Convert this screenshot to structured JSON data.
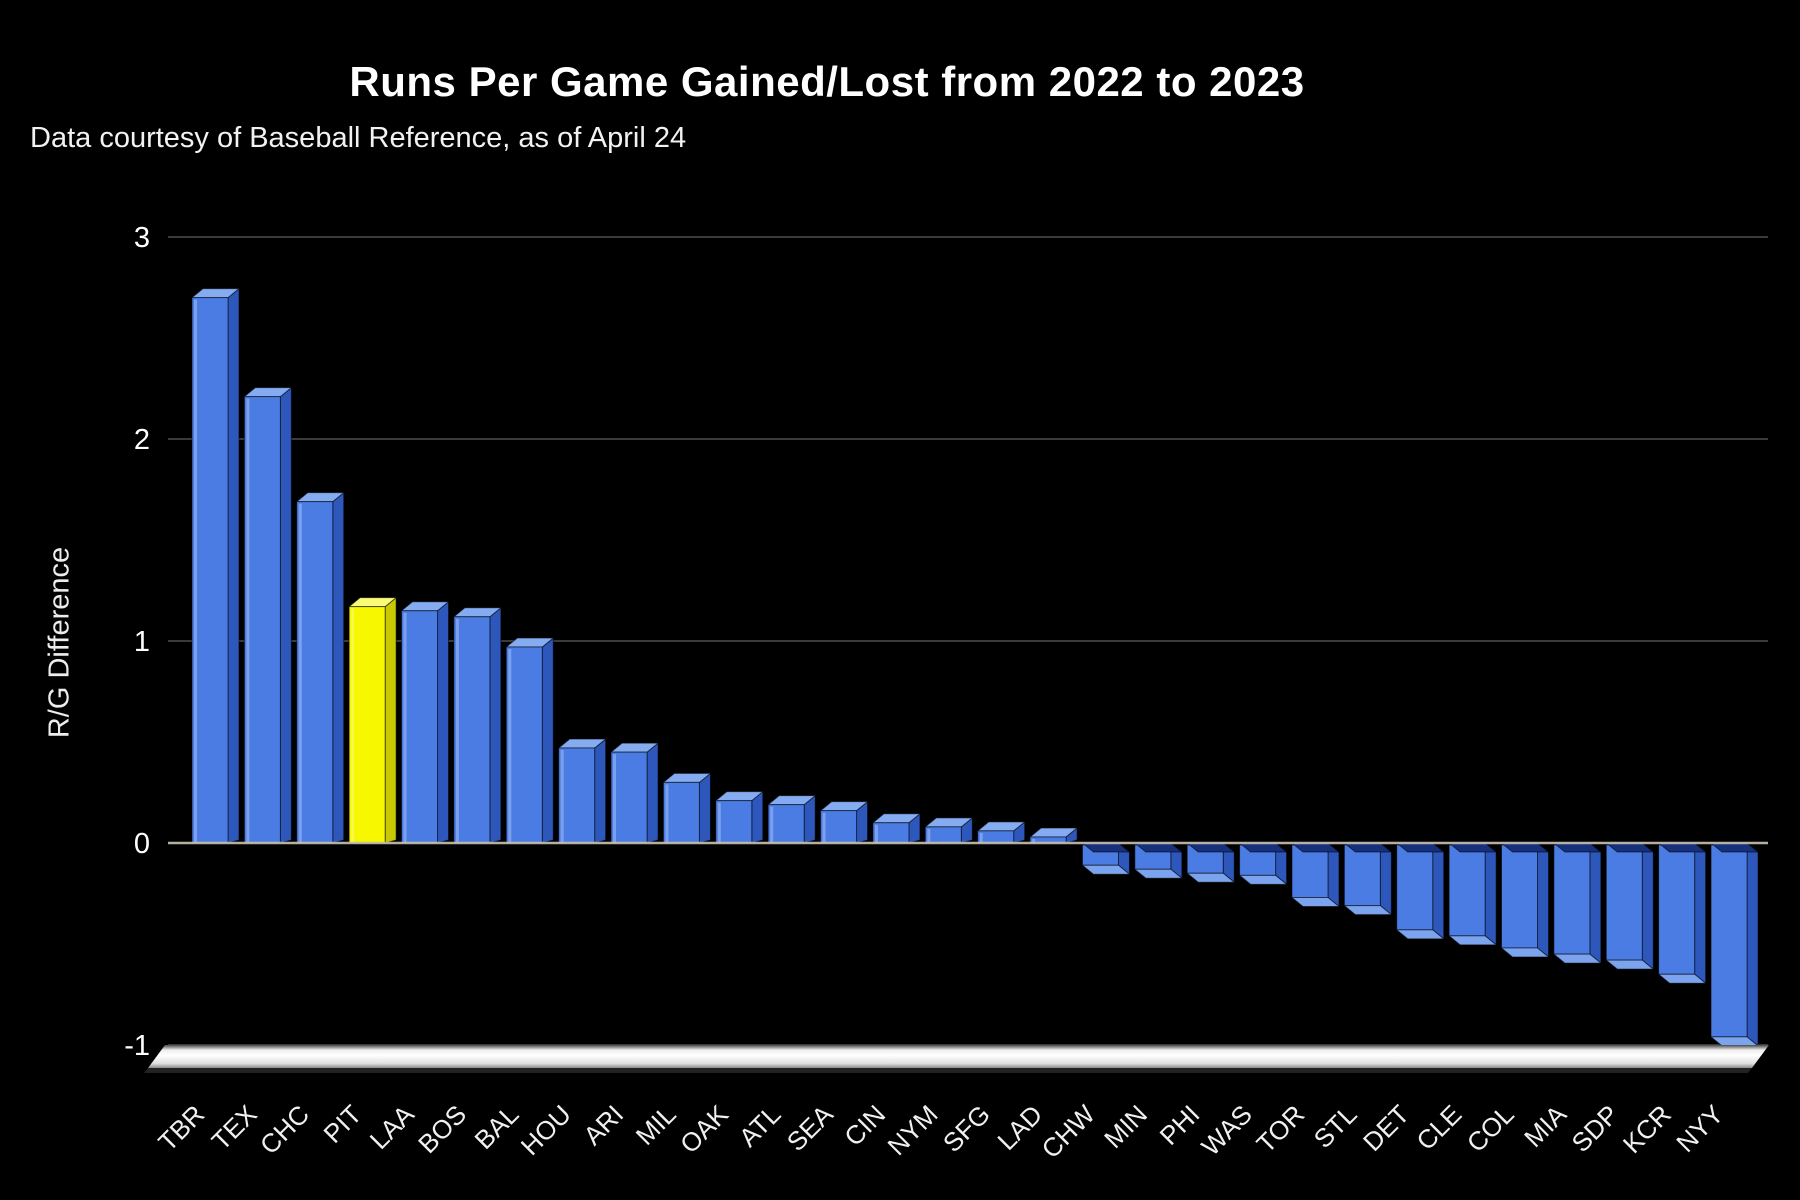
{
  "chart_data": {
    "type": "bar",
    "title": "Runs Per Game Gained/Lost from 2022 to 2023",
    "subtitle": "Data courtesy of Baseball Reference, as of April 24",
    "ylabel": "R/G Difference",
    "xlabel": "",
    "categories": [
      "TBR",
      "TEX",
      "CHC",
      "PIT",
      "LAA",
      "BOS",
      "BAL",
      "HOU",
      "ARI",
      "MIL",
      "OAK",
      "ATL",
      "SEA",
      "CIN",
      "NYM",
      "SFG",
      "LAD",
      "CHW",
      "MIN",
      "PHI",
      "WAS",
      "TOR",
      "STL",
      "DET",
      "CLE",
      "COL",
      "MIA",
      "SDP",
      "KCR",
      "NYY"
    ],
    "values": [
      2.7,
      2.21,
      1.69,
      1.17,
      1.15,
      1.12,
      0.97,
      0.47,
      0.45,
      0.3,
      0.21,
      0.19,
      0.16,
      0.1,
      0.08,
      0.06,
      0.03,
      -0.11,
      -0.13,
      -0.15,
      -0.16,
      -0.27,
      -0.31,
      -0.43,
      -0.46,
      -0.52,
      -0.55,
      -0.58,
      -0.65,
      -0.96
    ],
    "highlight_category": "PIT",
    "yticks": [
      "3",
      "2",
      "1",
      "0",
      "-1"
    ],
    "ytick_values": [
      3,
      2,
      1,
      0,
      -1
    ],
    "ylim": [
      -1,
      3
    ],
    "grid": true,
    "legend": false,
    "style": "3d-column",
    "colors": {
      "background": "#000000",
      "text": "#ffffff",
      "bar_front": "#4a7ce4",
      "bar_top": "#85abf0",
      "bar_side": "#2e57bb",
      "bar_neg_top": "#16307c",
      "bar_neg_bottom": "#7ca4ee",
      "highlight_front": "#f7f700",
      "highlight_top": "#fbfb7a",
      "highlight_side": "#c9c903",
      "gridline": "#3a3a3a",
      "zero_line": "#c9c2b2",
      "floor_light": "#ffffff",
      "floor_dark": "#7a7a7a"
    }
  }
}
